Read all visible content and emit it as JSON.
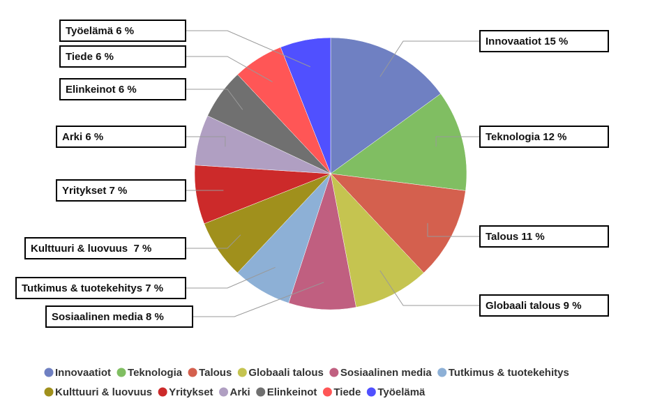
{
  "chart_data": {
    "type": "pie",
    "categories": [
      "Innovaatiot",
      "Teknologia",
      "Talous",
      "Globaali talous",
      "Sosiaalinen media",
      "Tutkimus & tuotekehitys",
      "Kulttuuri & luovuus",
      "Yritykset",
      "Arki",
      "Elinkeinot",
      "Tiede",
      "Työelämä"
    ],
    "values": [
      15,
      12,
      11,
      9,
      8,
      7,
      7,
      7,
      6,
      6,
      6,
      6
    ],
    "value_labels": [
      "Innovaatiot 15 %",
      "Teknologia 12 %",
      "Talous 11 %",
      "Globaali talous 9 %",
      "Sosiaalinen media 8 %",
      "Tutkimus & tuotekehitys 7 %",
      "Kulttuuri & luovuus  7 %",
      "Yritykset 7 %",
      "Arki 6 %",
      "Elinkeinot 6 %",
      "Tiede 6 %",
      "Työelämä 6 %"
    ],
    "colors": [
      "#6f80c2",
      "#80be62",
      "#d4604e",
      "#c5c450",
      "#c05f80",
      "#8db0d6",
      "#a0901c",
      "#cc2a2a",
      "#b09fc2",
      "#707070",
      "#ff5656",
      "#5050ff"
    ],
    "legend": "bottom"
  }
}
